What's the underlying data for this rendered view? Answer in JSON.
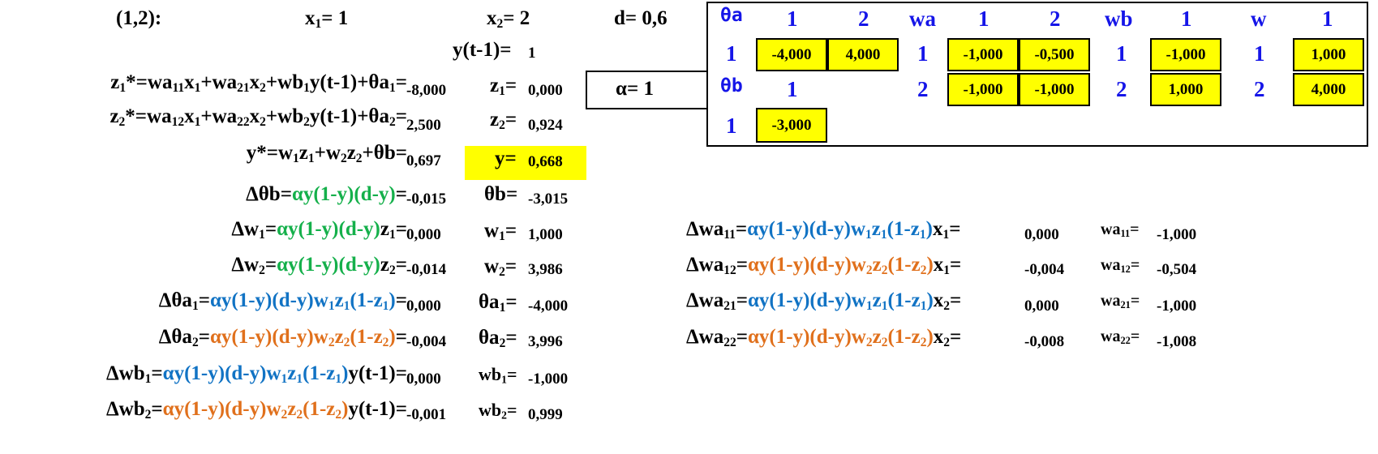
{
  "top": {
    "pair": "(1,2):",
    "x1": {
      "lhs": "x",
      "sub": "1",
      "eq": "=",
      "val": "1"
    },
    "x2": {
      "lhs": "x",
      "sub": "2",
      "eq": "=",
      "val": "2"
    },
    "d": {
      "lhs": "d=",
      "val": "0,6"
    },
    "yprev": {
      "lhs": "y(t-1)=",
      "val": "1"
    },
    "alpha": {
      "lhs": "α=",
      "val": "1"
    }
  },
  "forward": {
    "z1star": {
      "value": "-8,000"
    },
    "z2star": {
      "value": "2,500"
    },
    "ystar": {
      "value": "0,697"
    },
    "z1": {
      "value": "0,000"
    },
    "z2": {
      "value": "0,924"
    },
    "y": {
      "value": "0,668",
      "highlight": "#ffff00"
    }
  },
  "updates": {
    "dthetab": {
      "value": "-0,015",
      "new_label": "θb=",
      "new_value": "-3,015"
    },
    "dw1": {
      "value": "0,000",
      "new_value": "1,000"
    },
    "dw2": {
      "value": "-0,014",
      "new_value": "3,986"
    },
    "dthetaa1": {
      "value": "0,000",
      "new_value": "-4,000"
    },
    "dthetaa2": {
      "value": "-0,004",
      "new_value": "3,996"
    },
    "dwb1": {
      "value": "0,000",
      "new_value": "-1,000"
    },
    "dwb2": {
      "value": "-0,001",
      "new_value": "0,999"
    },
    "dwa11": {
      "value": "0,000",
      "new_value": "-1,000"
    },
    "dwa12": {
      "value": "-0,004",
      "new_value": "-0,504"
    },
    "dwa21": {
      "value": "0,000",
      "new_value": "-1,000"
    },
    "dwa22": {
      "value": "-0,008",
      "new_value": "-1,008"
    }
  },
  "weights_table": {
    "theta_a": {
      "header": "θa",
      "cols": [
        "1",
        "2"
      ],
      "row": "1",
      "values": [
        "-4,000",
        "4,000"
      ]
    },
    "wa": {
      "header": "wa",
      "cols": [
        "1",
        "2"
      ],
      "rows": [
        "1",
        "2"
      ],
      "values": [
        [
          "-1,000",
          "-0,500"
        ],
        [
          "-1,000",
          "-1,000"
        ]
      ]
    },
    "wb": {
      "header": "wb",
      "col": "1",
      "rows": [
        "1",
        "2"
      ],
      "values": [
        "-1,000",
        "1,000"
      ]
    },
    "w": {
      "header": "w",
      "col": "1",
      "rows": [
        "1",
        "2"
      ],
      "values": [
        "1,000",
        "4,000"
      ]
    },
    "theta_b": {
      "header": "θb",
      "col": "1",
      "row": "1",
      "value": "-3,000"
    }
  },
  "colors": {
    "blue": "#1173c4",
    "green": "#15b04b",
    "orange": "#e0701c",
    "header_blue": "#1515e8",
    "highlight": "#ffff00"
  }
}
